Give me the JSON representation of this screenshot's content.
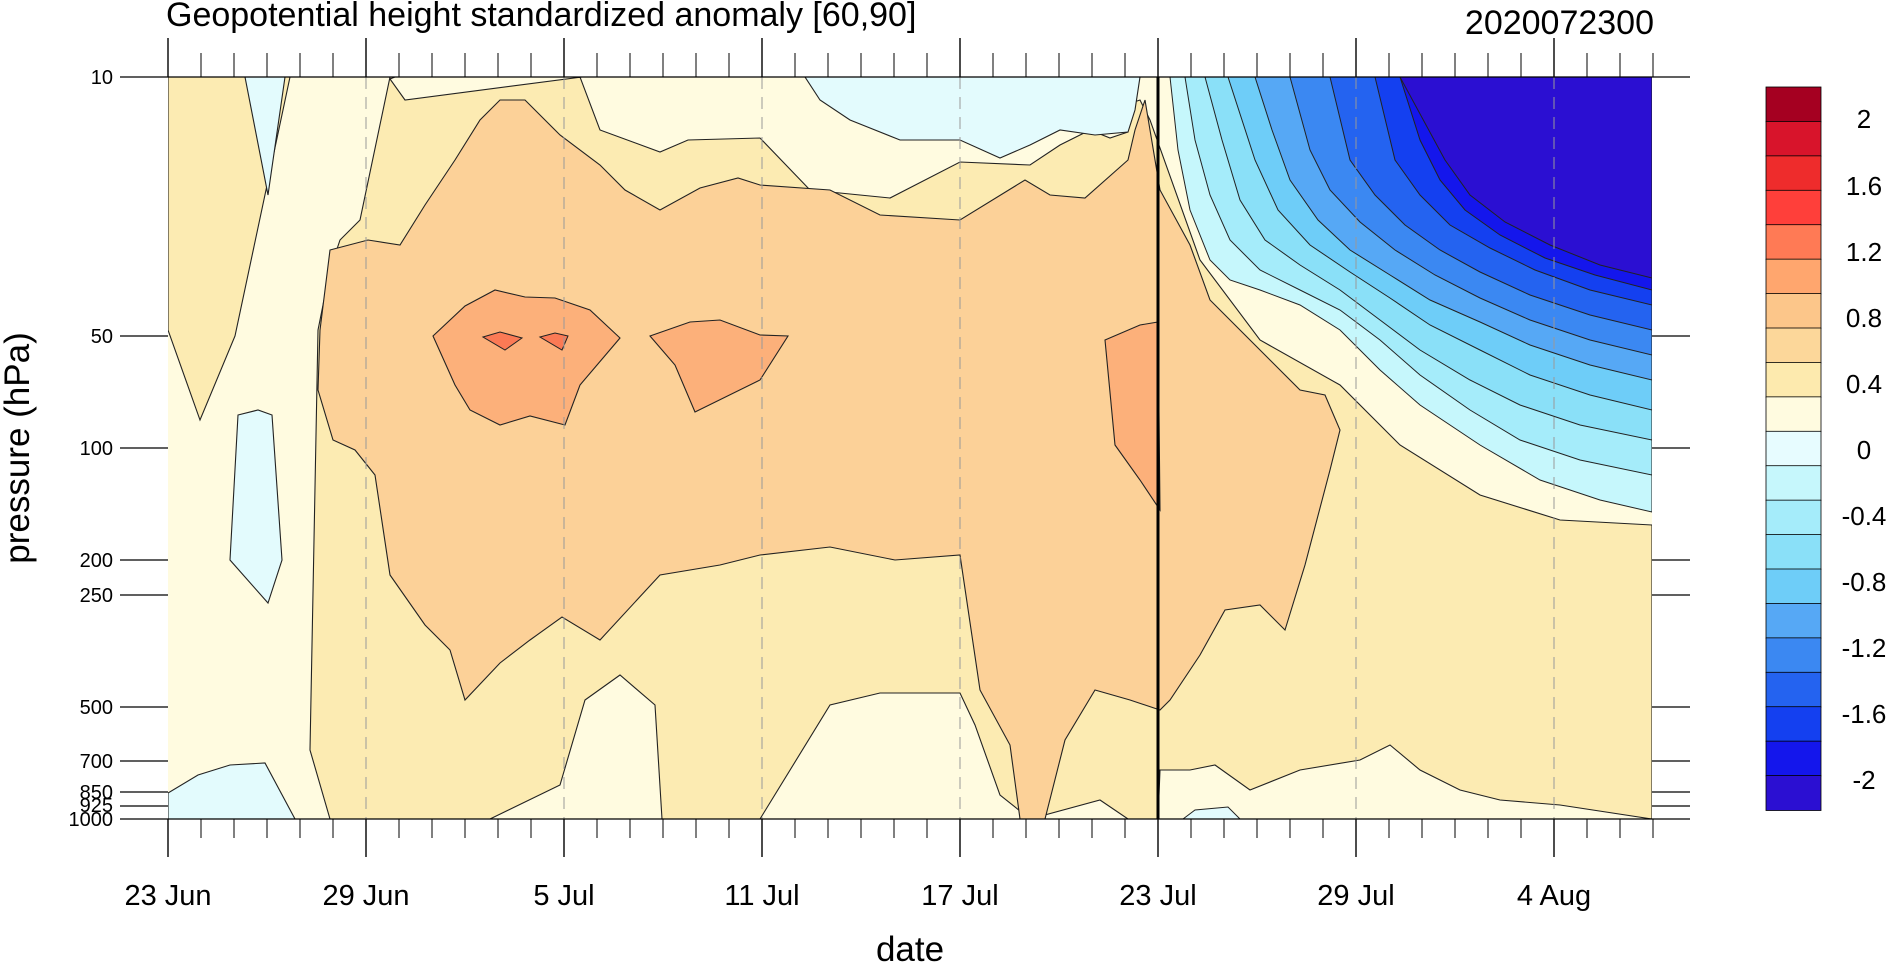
{
  "chart_data": {
    "type": "heatmap",
    "title": "Geopotential height standardized anomaly [60,90]",
    "title_right": "2020072300",
    "xlabel": "date",
    "ylabel": "pressure (hPa)",
    "x_ticks": [
      "23 Jun",
      "29 Jun",
      "5 Jul",
      "11 Jul",
      "17 Jul",
      "23 Jul",
      "29 Jul",
      "4 Aug"
    ],
    "y_ticks": [
      "10",
      "50",
      "100",
      "200",
      "250",
      "500",
      "700",
      "850",
      "925",
      "1000"
    ],
    "y_scale": "log",
    "ylim": [
      1000,
      10
    ],
    "xlim": [
      "23 Jun",
      "7 Aug"
    ],
    "current_date_marker": "23 Jul",
    "colorbar": {
      "labels": [
        "2",
        "1.6",
        "1.2",
        "0.8",
        "0.4",
        "0",
        "-0.4",
        "-0.8",
        "-1.2",
        "-1.6",
        "-2"
      ],
      "colors": [
        "#a50021",
        "#d8142b",
        "#ee2c2c",
        "#ff3f3a",
        "#ff7a55",
        "#ffa66e",
        "#fcc68a",
        "#fcd79a",
        "#fdeaae",
        "#fffbe0",
        "#e7fcff",
        "#c6f7fc",
        "#a5ecfa",
        "#8ae0f8",
        "#6ecdf8",
        "#56a8f5",
        "#3b88f2",
        "#2463f0",
        "#1440f0",
        "#1416ec",
        "#2b0fd2"
      ]
    },
    "fill_colors": {
      "neutral_pos": "#fffbe0",
      "pos_04": "#fcebb2",
      "pos_08": "#fcd198",
      "pos_12": "#fcb07a",
      "pos_16": "#fb7a55",
      "neg_0": "#e3fbfd"
    },
    "series": [
      {
        "name": "",
        "values": []
      }
    ]
  }
}
